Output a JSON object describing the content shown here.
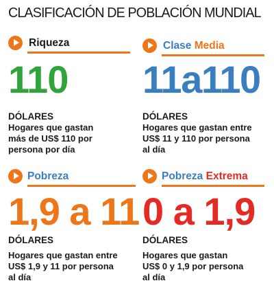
{
  "title": "CLASIFICACIÓN DE POBLACIÓN MUNDIAL",
  "categories": [
    {
      "label_parts": [
        "Riqueza"
      ],
      "value": "110",
      "currency": "DÓLARES",
      "description_lines": [
        "Hogares que gastan",
        "más de US$ 110 por",
        "persona por día"
      ]
    },
    {
      "label_parts": [
        "Clase",
        "Media"
      ],
      "value": "11a110",
      "currency": "DÓLARES",
      "description_lines": [
        "Hogares que gastan entre",
        "US$ 11 y 110 por persona",
        "al día"
      ]
    },
    {
      "label_parts": [
        "Pobreza"
      ],
      "value": "1,9 a 11",
      "currency": "DÓLARES",
      "description_lines": [
        "Hogares que gastan entre",
        "US$ 1,9 y 11 por persona",
        "al día"
      ]
    },
    {
      "label_parts": [
        "Pobreza",
        "Extrema"
      ],
      "value": "0 a 1,9",
      "currency": "DÓLARES",
      "description_lines": [
        "Hogares que gastan",
        "US$ 0 y 1,9 por persona",
        "al día"
      ]
    }
  ],
  "colors": {
    "accent": "#ee7518",
    "riqueza": "#2ea43a",
    "media": "#3a7ec2",
    "pobreza": "#ee7518",
    "extrema": "#e52a24"
  }
}
